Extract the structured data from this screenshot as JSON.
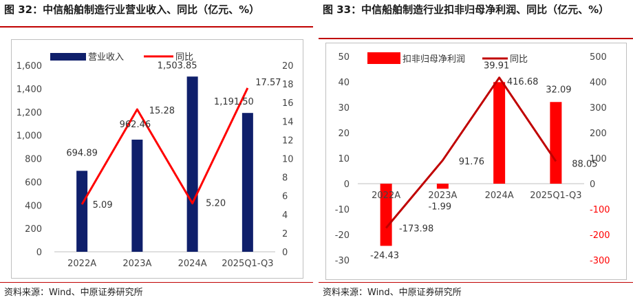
{
  "charts": [
    {
      "title": "图 32：中信船舶制造行业营业收入、同比（亿元、%）",
      "source": "资料来源：Wind、中原证券研究所"
    },
    {
      "title": "图 33：中信船舶制造行业扣非归母净利润、同比（亿元、%）",
      "source": "资料来源：Wind、中原证券研究所"
    }
  ],
  "chart_data": [
    {
      "type": "bar",
      "categories": [
        "2022A",
        "2023A",
        "2024A",
        "2025Q1-Q3"
      ],
      "series": [
        {
          "name": "营业收入",
          "kind": "bar",
          "axis": "left",
          "color": "#0f1f6b",
          "values": [
            694.89,
            962.46,
            1503.85,
            1191.5
          ],
          "labels": [
            "694.89",
            "962.46",
            "1,503.85",
            "1,191.50"
          ]
        },
        {
          "name": "同比",
          "kind": "line",
          "axis": "right",
          "color": "#ff0000",
          "values": [
            5.09,
            15.28,
            5.2,
            17.57
          ],
          "labels": [
            "5.09",
            "15.28",
            "5.20",
            "17.57"
          ]
        }
      ],
      "left_axis": {
        "min": 0,
        "max": 1600,
        "step": 200,
        "ticks": [
          "0",
          "200",
          "400",
          "600",
          "800",
          "1,000",
          "1,200",
          "1,400",
          "1,600"
        ]
      },
      "right_axis": {
        "min": 0,
        "max": 20,
        "step": 2,
        "ticks": [
          "0",
          "2",
          "4",
          "6",
          "8",
          "10",
          "12",
          "14",
          "16",
          "18",
          "20"
        ]
      },
      "legend_position": "top-left",
      "grid": false
    },
    {
      "type": "bar",
      "categories": [
        "2022A",
        "2023A",
        "2024A",
        "2025Q1-Q3"
      ],
      "series": [
        {
          "name": "扣非归母净利润",
          "kind": "bar",
          "axis": "left",
          "color": "#ff0000",
          "values": [
            -24.43,
            -1.99,
            39.91,
            32.09
          ],
          "labels": [
            "-24.43",
            "-1.99",
            "39.91",
            "32.09"
          ]
        },
        {
          "name": "同比",
          "kind": "line",
          "axis": "right",
          "color": "#c00000",
          "values": [
            -173.98,
            91.76,
            416.68,
            88.05
          ],
          "labels": [
            "-173.98",
            "91.76",
            "416.68",
            "88.05"
          ]
        }
      ],
      "left_axis": {
        "min": -30,
        "max": 50,
        "step": 10,
        "ticks": [
          "-30",
          "-20",
          "-10",
          "0",
          "10",
          "20",
          "30",
          "40",
          "50"
        ]
      },
      "right_axis": {
        "min": -300,
        "max": 500,
        "step": 100,
        "ticks": [
          "-300",
          "-200",
          "-100",
          "0",
          "100",
          "200",
          "300",
          "400",
          "500"
        ],
        "negative_color": "#ff0000"
      },
      "legend_position": "top-left",
      "grid": false
    }
  ]
}
